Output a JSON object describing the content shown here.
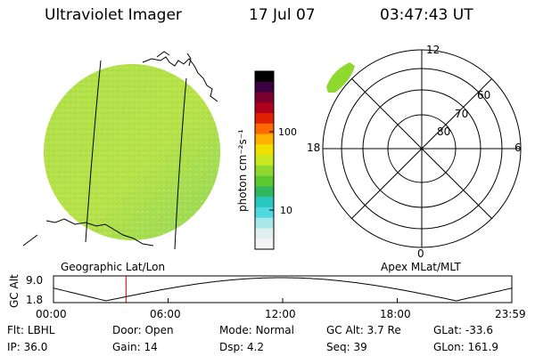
{
  "header": {
    "instrument": "Ultraviolet Imager",
    "date": "17 Jul 07",
    "time": "03:47:43 UT"
  },
  "colorbar": {
    "unit_label": "photon cm⁻²s⁻¹",
    "tick_labels": [
      "100",
      "10"
    ],
    "colors": [
      "#000000",
      "#3a0040",
      "#7a0030",
      "#b00020",
      "#e02000",
      "#ff6a00",
      "#ffb000",
      "#f0e000",
      "#c8e820",
      "#90d830",
      "#5ec830",
      "#30b860",
      "#28c8c0",
      "#50d8e0",
      "#a8e8e8",
      "#e0f0f0",
      "#f4f4f4"
    ]
  },
  "left_map": {
    "caption": "Geographic Lat/Lon",
    "disk_color": "#b8e24a"
  },
  "polar_plot": {
    "caption": "Apex MLat/MLT",
    "mlt_labels": {
      "top": "12",
      "left": "18",
      "right": "6",
      "bottom": "0"
    },
    "mlat_labels": [
      "60",
      "70",
      "80"
    ],
    "aurora_color": "#8ed830"
  },
  "altitude_plot": {
    "ylabel": "GC Alt",
    "ytick_top": "9.0",
    "ytick_bottom": "1.8",
    "xtick_labels": [
      "00:00",
      "06:00",
      "12:00",
      "18:00",
      "23:59"
    ],
    "current_marker_hour": 3.796,
    "line_color": "#000000",
    "marker_color": "#cc0000"
  },
  "status": {
    "row1": [
      {
        "label": "Flt:",
        "value": "LBHL"
      },
      {
        "label": "Door:",
        "value": "Open"
      },
      {
        "label": "Mode:",
        "value": "Normal"
      },
      {
        "label": "GC Alt:",
        "value": "3.7 Re"
      },
      {
        "label": "GLat:",
        "value": "-33.6"
      }
    ],
    "row2": [
      {
        "label": "IP:",
        "value": "36.0"
      },
      {
        "label": "Gain:",
        "value": "14"
      },
      {
        "label": "Dsp:",
        "value": "4.2"
      },
      {
        "label": "Seq:",
        "value": "39"
      },
      {
        "label": "GLon:",
        "value": "161.9"
      }
    ]
  }
}
